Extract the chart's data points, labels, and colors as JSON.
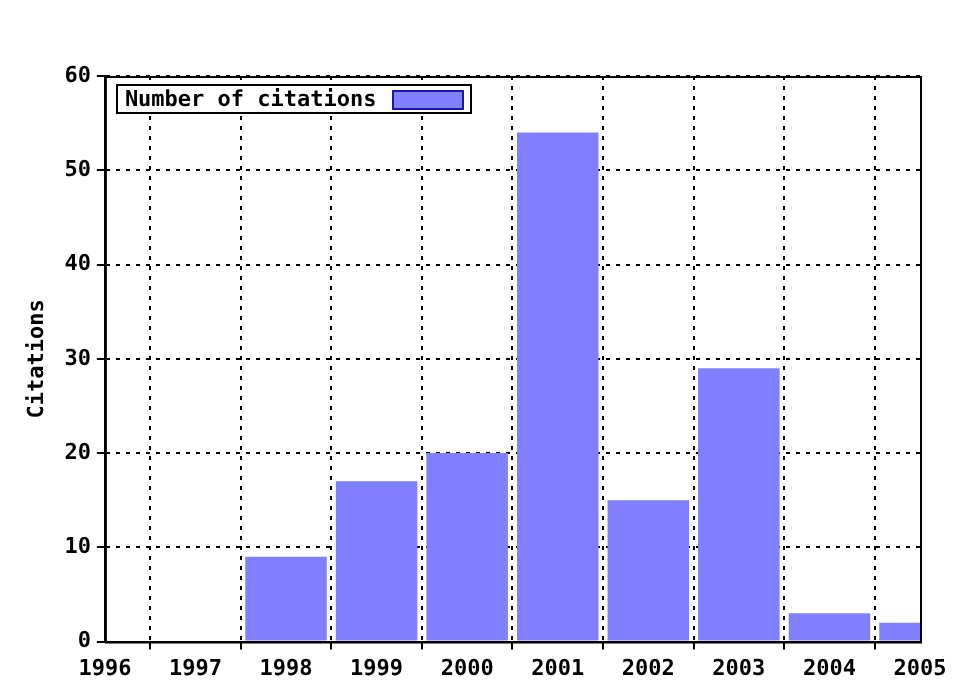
{
  "chart_data": {
    "type": "bar",
    "ylabel": "Citations",
    "x": [
      1998,
      1999,
      2000,
      2001,
      2002,
      2003,
      2004,
      2005
    ],
    "series": [
      {
        "name": "Number of citations",
        "color": "#8080ff",
        "values": [
          9,
          17,
          20,
          54,
          15,
          29,
          3,
          2
        ]
      }
    ],
    "xlim": [
      1996,
      2005
    ],
    "xticks": [
      1996,
      1997,
      1998,
      1999,
      2000,
      2001,
      2002,
      2003,
      2004,
      2005
    ],
    "ylim": [
      0,
      60
    ],
    "yticks": [
      0,
      10,
      20,
      30,
      40,
      50,
      60
    ],
    "grid": true,
    "legend": "top left"
  }
}
